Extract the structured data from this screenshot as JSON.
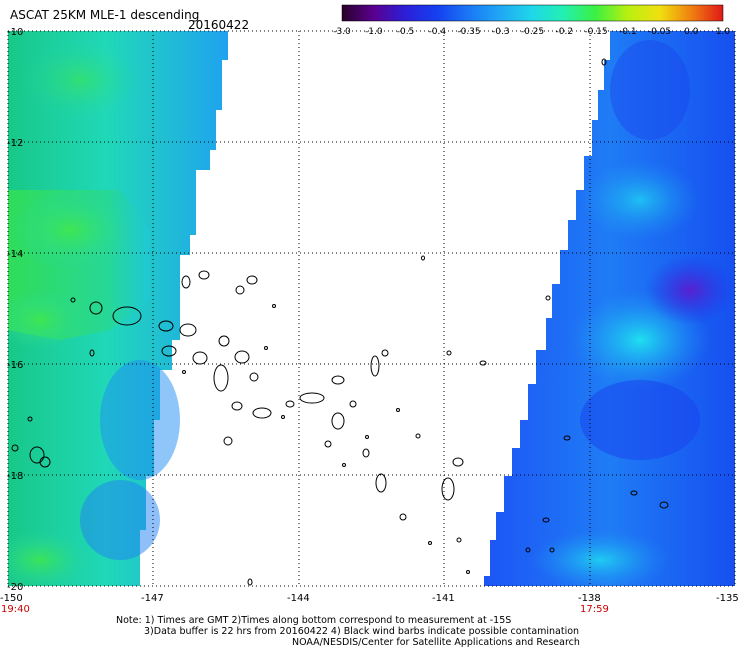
{
  "header": {
    "title": "ASCAT 25KM MLE-1 descending",
    "date": "20160422"
  },
  "colorbar": {
    "labels": [
      "-3.0",
      "-1.0",
      "-0.5",
      "-0.4",
      "-0.35",
      "-0.3",
      "-0.25",
      "-0.2",
      "-0.15",
      "-0.1",
      "-0.05",
      "0.0",
      "1.0"
    ],
    "colors": [
      "#280028",
      "#5a0090",
      "#2b1fd8",
      "#1540f0",
      "#1a78f5",
      "#20a8f5",
      "#1fd8e8",
      "#22f0b0",
      "#3cf040",
      "#b8f010",
      "#f0e010",
      "#f08010",
      "#e01818"
    ]
  },
  "axes": {
    "lat_labels": [
      "-10",
      "-12",
      "-14",
      "-16",
      "-18",
      "-20"
    ],
    "lon_labels": [
      "-150",
      "-147",
      "-144",
      "-141",
      "-138",
      "-135"
    ]
  },
  "times": {
    "left": "19:40",
    "right": "17:59"
  },
  "notes": [
    "Note: 1) Times are GMT 2)Times along bottom correspond to measurement at -15S",
    "3)Data buffer is 22 hrs from 20160422 4) Black wind barbs indicate possible contamination",
    "NOAA/NESDIS/Center for Satellite Applications and Research"
  ]
}
